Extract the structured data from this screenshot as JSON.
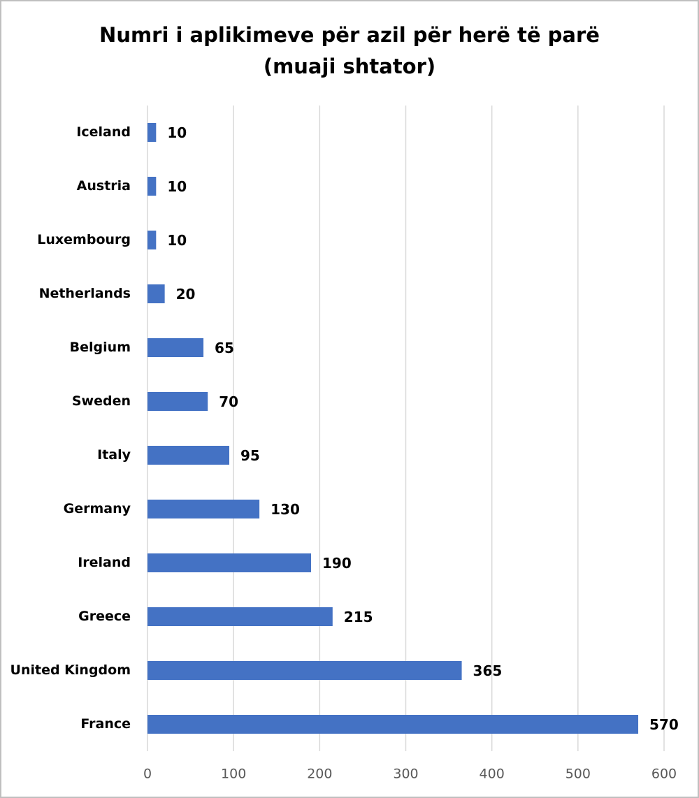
{
  "chart_data": {
    "type": "bar",
    "orientation": "horizontal",
    "title": [
      "Numri i aplikimeve për azil për herë të parë",
      "(muaji shtator)"
    ],
    "categories": [
      "Iceland",
      "Austria",
      "Luxembourg",
      "Netherlands",
      "Belgium",
      "Sweden",
      "Italy",
      "Germany",
      "Ireland",
      "Greece",
      "United Kingdom",
      "France"
    ],
    "values": [
      10,
      10,
      10,
      20,
      65,
      70,
      95,
      130,
      190,
      215,
      365,
      570
    ],
    "color": "#4472c4",
    "xlim": [
      0,
      600
    ],
    "xticks": [
      0,
      100,
      200,
      300,
      400,
      500,
      600
    ],
    "grid": true
  }
}
